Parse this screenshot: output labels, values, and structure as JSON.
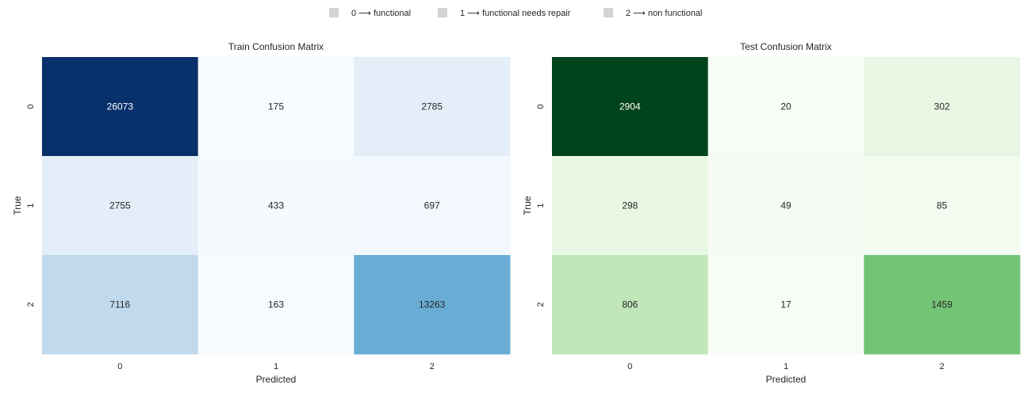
{
  "legend": {
    "items": [
      {
        "label": "0 ⟶ functional",
        "color": "#d3d3d3"
      },
      {
        "label": "1 ⟶ functional needs repair",
        "color": "#d3d3d3"
      },
      {
        "label": "2 ⟶ non functional",
        "color": "#d3d3d3"
      }
    ]
  },
  "chart_data": [
    {
      "type": "heatmap",
      "title": "Train Confusion Matrix",
      "xlabel": "Predicted",
      "ylabel": "True",
      "x_ticks": [
        "0",
        "1",
        "2"
      ],
      "y_ticks": [
        "0",
        "1",
        "2"
      ],
      "colormap": "Blues",
      "colorbar": false,
      "values": [
        [
          26073,
          175,
          2785
        ],
        [
          2755,
          433,
          697
        ],
        [
          7116,
          163,
          13263
        ]
      ]
    },
    {
      "type": "heatmap",
      "title": "Test Confusion Matrix",
      "xlabel": "Predicted",
      "ylabel": "True",
      "x_ticks": [
        "0",
        "1",
        "2"
      ],
      "y_ticks": [
        "0",
        "1",
        "2"
      ],
      "colormap": "Greens",
      "colorbar": false,
      "values": [
        [
          2904,
          20,
          302
        ],
        [
          298,
          49,
          85
        ],
        [
          806,
          17,
          1459
        ]
      ]
    }
  ]
}
